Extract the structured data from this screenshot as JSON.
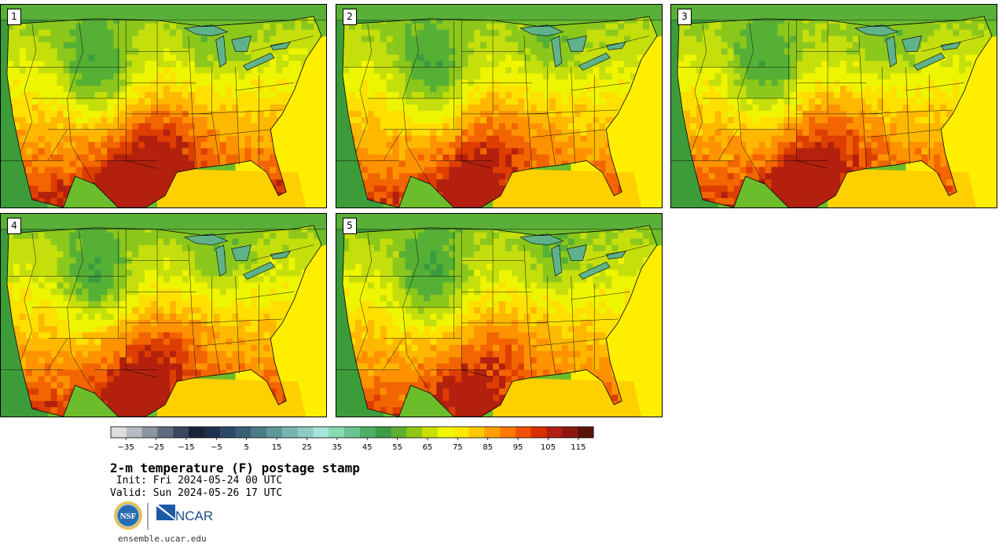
{
  "panels": [
    {
      "label": "1",
      "warmth": 1.0
    },
    {
      "label": "2",
      "warmth": 0.8
    },
    {
      "label": "3",
      "warmth": 0.88
    },
    {
      "label": "4",
      "warmth": 0.86
    },
    {
      "label": "5",
      "warmth": 0.72
    }
  ],
  "colorbar": {
    "colors": [
      "#dedede",
      "#b8bcc4",
      "#8d95a3",
      "#616b80",
      "#3b4660",
      "#1a2338",
      "#223050",
      "#2e4868",
      "#3a6078",
      "#4c7c88",
      "#5f9898",
      "#78b3b0",
      "#8fcac4",
      "#a4e6d9",
      "#88d8b0",
      "#6cc48e",
      "#4fae66",
      "#3d9a45",
      "#5cb030",
      "#90c818",
      "#c8e000",
      "#f0f800",
      "#ffe800",
      "#ffc800",
      "#ffa000",
      "#ff7a00",
      "#f05000",
      "#d83000",
      "#b02010",
      "#8e1810",
      "#5c1408"
    ],
    "ticks": [
      "−35",
      "−25",
      "−15",
      "−5",
      "5",
      "15",
      "25",
      "35",
      "45",
      "55",
      "65",
      "75",
      "85",
      "95",
      "105",
      "115"
    ],
    "min": -40,
    "max": 120
  },
  "title": "2-m temperature (F) postage stamp",
  "init_line": " Init: Fri 2024-05-24 00 UTC",
  "valid_line": "Valid: Sun 2024-05-26 17 UTC",
  "logos": {
    "nsf": "NSF",
    "ncar": "NCAR"
  },
  "url": "ensemble.ucar.edu"
}
